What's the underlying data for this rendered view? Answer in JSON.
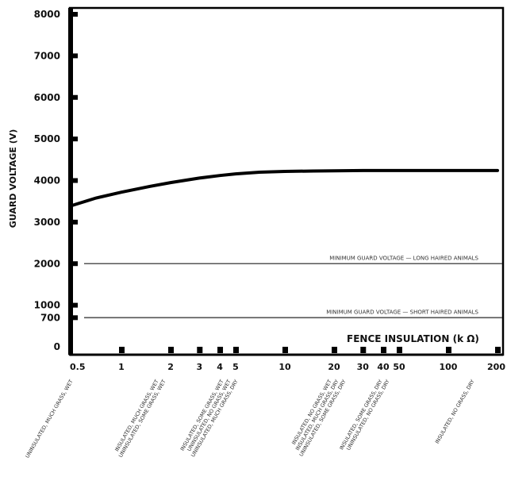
{
  "chart_data": {
    "type": "line",
    "title": "",
    "xlabel": "FENCE INSULATION (k Ω)",
    "ylabel": "GUARD VOLTAGE (V)",
    "x_scale": "log",
    "xlim": [
      0.5,
      200
    ],
    "ylim": [
      0,
      8000
    ],
    "grid": false,
    "x_ticks": [
      0.5,
      1,
      2,
      3,
      4,
      5,
      10,
      20,
      30,
      40,
      50,
      100,
      200
    ],
    "x_tick_labels": [
      "0.5",
      "1",
      "2",
      "3",
      "4",
      "5",
      "10",
      "20",
      "30",
      "40",
      "50",
      "100",
      "200"
    ],
    "y_ticks": [
      0,
      700,
      1000,
      2000,
      3000,
      4000,
      5000,
      6000,
      7000,
      8000
    ],
    "y_tick_labels": [
      "0",
      "700",
      "1000",
      "2000",
      "3000",
      "4000",
      "5000",
      "6000",
      "7000",
      "8000"
    ],
    "series": [
      {
        "x": [
          0.5,
          0.7,
          1,
          1.5,
          2,
          3,
          4,
          5,
          7,
          10,
          15,
          20,
          30,
          50,
          100,
          200
        ],
        "y": [
          3400,
          3580,
          3720,
          3860,
          3950,
          4060,
          4120,
          4160,
          4200,
          4220,
          4230,
          4235,
          4240,
          4240,
          4240,
          4240
        ]
      }
    ],
    "reference_lines": [
      {
        "y": 2000,
        "label": "MINIMUM GUARD VOLTAGE — LONG HAIRED ANIMALS"
      },
      {
        "y": 700,
        "label": "MINIMUM GUARD VOLTAGE — SHORT HAIRED ANIMALS"
      }
    ],
    "conditions": [
      {
        "x": 0.5,
        "lines": [
          "UNINSULATED, MUCH GRASS, WET"
        ]
      },
      {
        "x": 2,
        "lines": [
          "INSULATED, MUCH GRASS, WET",
          "UNINSULATED, SOME GRASS, WET"
        ]
      },
      {
        "x": 4,
        "lines": [
          "INSULATED, SOME GRASS, WET",
          "UNINSULATED, NO GRASS, WET",
          "UNINSULATED, MUCH GRASS, DRY"
        ]
      },
      {
        "x": 20,
        "lines": [
          "INSULATED, NO GRASS, WET",
          "INSULATED, MUCH GRASS, DRY",
          "UNINSULATED, SOME GRASS, DRY"
        ]
      },
      {
        "x": 40,
        "lines": [
          "INSULATED, SOME GRASS, DRY",
          "UNINSULATED, NO GRASS, DRY"
        ]
      },
      {
        "x": 200,
        "lines": [
          "INSULATED, NO GRASS, DRY"
        ]
      }
    ],
    "colors": {
      "line": "#000000",
      "reference": "#555555",
      "axis": "#000000"
    }
  }
}
